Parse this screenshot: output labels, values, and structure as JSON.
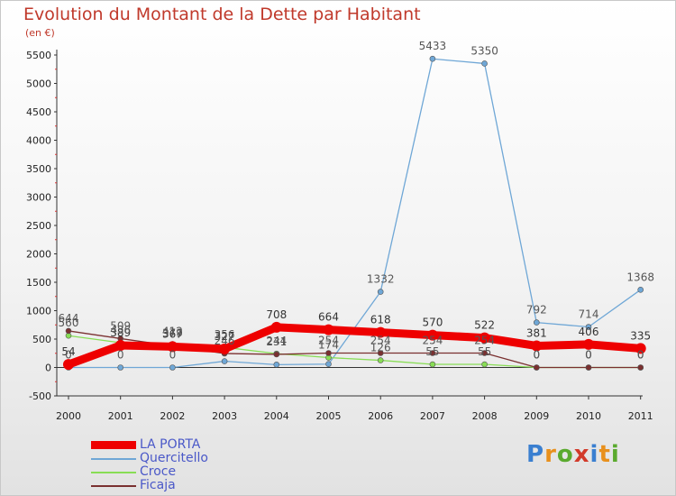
{
  "chart_data": {
    "type": "line",
    "title": "Evolution du Montant de la Dette par Habitant",
    "subtitle": "(en €)",
    "categories": [
      "2000",
      "2001",
      "2002",
      "2003",
      "2004",
      "2005",
      "2006",
      "2007",
      "2008",
      "2009",
      "2010",
      "2011"
    ],
    "ylim": [
      -500,
      5500
    ],
    "yticks": [
      -500,
      0,
      500,
      1000,
      1500,
      2000,
      2500,
      3000,
      3500,
      4000,
      4500,
      5000,
      5500
    ],
    "grid": false,
    "legend_position": "bottom-left",
    "series": [
      {
        "name": "LA PORTA",
        "color": "#ee0000",
        "values": [
          54,
          389,
          367,
          327,
          708,
          664,
          618,
          570,
          522,
          381,
          406,
          335
        ],
        "labels": [
          "54",
          "389",
          "367",
          "327",
          "708",
          "664",
          "618",
          "570",
          "522",
          "381",
          "406",
          "335"
        ]
      },
      {
        "name": "Quercitello",
        "color": "#6fa7d6",
        "values": [
          0,
          0,
          0,
          110,
          50,
          60,
          1332,
          5433,
          5350,
          792,
          714,
          1368
        ],
        "labels": [
          "0",
          "0",
          "0",
          "",
          "",
          "",
          "1332",
          "5433",
          "5350",
          "792",
          "714",
          "1368"
        ]
      },
      {
        "name": "Croce",
        "color": "#88dd55",
        "values": [
          560,
          436,
          412,
          356,
          244,
          174,
          126,
          55,
          55,
          0,
          0,
          0
        ],
        "labels": [
          "560",
          "436",
          "412",
          "356",
          "244",
          "174",
          "126",
          "55",
          "55",
          "0",
          "0",
          "0"
        ]
      },
      {
        "name": "Ficaja",
        "color": "#7a3030",
        "values": [
          644,
          509,
          379,
          246,
          231,
          254,
          254,
          254,
          254,
          0,
          0,
          0
        ],
        "labels": [
          "644",
          "509",
          "379",
          "246",
          "231",
          "254",
          "254",
          "254",
          "254",
          "0",
          "0",
          "0"
        ]
      }
    ]
  },
  "logo_text": "Proxiti"
}
